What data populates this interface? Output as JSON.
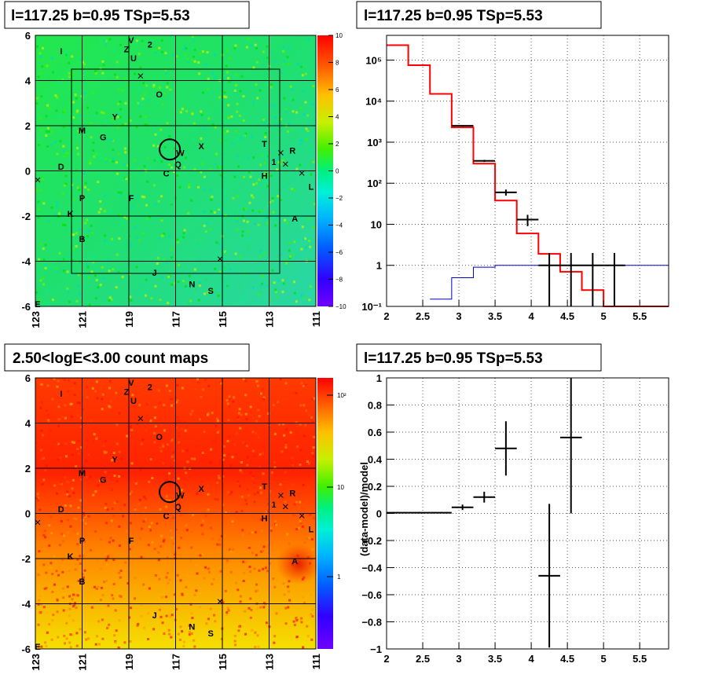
{
  "panels": {
    "tl_title": "l=117.25 b=0.95 TSp=5.53",
    "tr_title": "l=117.25 b=0.95 TSp=5.53",
    "bl_title": "2.50<logE<3.00 count maps",
    "br_title": "l=117.25 b=0.95 TSp=5.53"
  },
  "map": {
    "x_ticks": [
      "123",
      "121",
      "119",
      "117",
      "115",
      "113",
      "111"
    ],
    "y_ticks": [
      "6",
      "4",
      "2",
      "0",
      "-2",
      "-4",
      "-6"
    ],
    "x_range": [
      123,
      111
    ],
    "y_range": [
      -6,
      6
    ],
    "circle_center": [
      117.25,
      0.95
    ],
    "sources": [
      {
        "label": "I",
        "l": 121.9,
        "b": 5.3
      },
      {
        "label": "V",
        "l": 118.9,
        "b": 5.8
      },
      {
        "label": "2",
        "l": 118.1,
        "b": 5.6
      },
      {
        "label": "Z",
        "l": 119.1,
        "b": 5.4
      },
      {
        "label": "U",
        "l": 118.8,
        "b": 5.0
      },
      {
        "label": "O",
        "l": 117.7,
        "b": 3.4
      },
      {
        "label": "Y",
        "l": 119.6,
        "b": 2.4
      },
      {
        "label": "M",
        "l": 121.0,
        "b": 1.8
      },
      {
        "label": "G",
        "l": 120.1,
        "b": 1.5
      },
      {
        "label": "W",
        "l": 116.8,
        "b": 0.8
      },
      {
        "label": "X",
        "l": 115.9,
        "b": 1.1
      },
      {
        "label": "T",
        "l": 113.2,
        "b": 1.2
      },
      {
        "label": "R",
        "l": 112.0,
        "b": 0.9
      },
      {
        "label": "1",
        "l": 112.8,
        "b": 0.4
      },
      {
        "label": "D",
        "l": 121.9,
        "b": 0.2
      },
      {
        "label": "C",
        "l": 117.4,
        "b": -0.1
      },
      {
        "label": "Q",
        "l": 116.9,
        "b": 0.3
      },
      {
        "label": "H",
        "l": 113.2,
        "b": -0.2
      },
      {
        "label": "L",
        "l": 111.2,
        "b": -0.7
      },
      {
        "label": "F",
        "l": 118.9,
        "b": -1.2
      },
      {
        "label": "P",
        "l": 121.0,
        "b": -1.2
      },
      {
        "label": "K",
        "l": 121.5,
        "b": -1.9
      },
      {
        "label": "A",
        "l": 111.9,
        "b": -2.1
      },
      {
        "label": "B",
        "l": 121.0,
        "b": -3.0
      },
      {
        "label": "J",
        "l": 117.9,
        "b": -4.5
      },
      {
        "label": "N",
        "l": 116.3,
        "b": -5.0
      },
      {
        "label": "S",
        "l": 115.5,
        "b": -5.3
      },
      {
        "label": "E",
        "l": 122.9,
        "b": -5.9
      }
    ],
    "crosses": [
      {
        "l": 118.5,
        "b": 4.2
      },
      {
        "l": 122.9,
        "b": -0.4
      },
      {
        "l": 112.5,
        "b": 0.8
      },
      {
        "l": 112.3,
        "b": 0.3
      },
      {
        "l": 111.6,
        "b": -0.1
      },
      {
        "l": 115.1,
        "b": -3.9
      }
    ]
  },
  "zscale_tl": {
    "ticks": [
      "10",
      "8",
      "6",
      "4",
      "2",
      "0",
      "−2",
      "−4",
      "−6",
      "−8",
      "−10"
    ]
  },
  "zscale_bl": {
    "ticks": [
      "10²",
      "10",
      "1"
    ]
  },
  "chart_data": [
    {
      "type": "line",
      "title": "l=117.25 b=0.95 TSp=5.53",
      "xlim": [
        2,
        5.9
      ],
      "ylim": [
        0.1,
        400000
      ],
      "log_y": true,
      "grid": true,
      "x_ticks": [
        "2",
        "2.5",
        "3",
        "3.5",
        "4",
        "4.5",
        "5",
        "5.5"
      ],
      "y_ticks": [
        "10⁻¹",
        "1",
        "10",
        "10²",
        "10³",
        "10⁴",
        "10⁵"
      ],
      "model_total_step": {
        "edges": [
          2.0,
          2.3,
          2.6,
          2.9,
          3.2,
          3.5,
          3.8,
          4.1,
          4.4,
          4.7,
          5.0,
          5.9
        ],
        "values": [
          230000,
          75000,
          15000,
          2300,
          300,
          38,
          6,
          1.9,
          0.7,
          0.25,
          0.1
        ],
        "color": "#ff0000"
      },
      "model_source_step": {
        "edges": [
          2.6,
          2.9,
          3.2,
          3.5,
          3.8,
          4.1,
          5.9
        ],
        "values": [
          0.15,
          0.5,
          0.9,
          1.0,
          1.0,
          1.0
        ],
        "color": "#0000cc"
      },
      "data_points": [
        {
          "x": 3.05,
          "y": 2500,
          "xerr": 0.15,
          "ylo": 2400,
          "yhi": 2600
        },
        {
          "x": 3.35,
          "y": 350,
          "xerr": 0.15,
          "ylo": 330,
          "yhi": 370
        },
        {
          "x": 3.65,
          "y": 60,
          "xerr": 0.15,
          "ylo": 50,
          "yhi": 70
        },
        {
          "x": 3.95,
          "y": 13,
          "xerr": 0.15,
          "ylo": 9,
          "yhi": 17
        },
        {
          "x": 4.25,
          "y": 1,
          "xerr": 0.15,
          "ylo": 0.1,
          "yhi": 2
        },
        {
          "x": 4.55,
          "y": 1,
          "xerr": 0.15,
          "ylo": 0.1,
          "yhi": 2
        },
        {
          "x": 4.85,
          "y": 1,
          "xerr": 0.15,
          "ylo": 0.1,
          "yhi": 2
        },
        {
          "x": 5.15,
          "y": 1,
          "xerr": 0.15,
          "ylo": 0.1,
          "yhi": 2
        }
      ]
    },
    {
      "type": "scatter",
      "title": "l=117.25 b=0.95 TSp=5.53",
      "ylabel": "(data-model)/model",
      "xlim": [
        2,
        5.9
      ],
      "ylim": [
        -1,
        1
      ],
      "grid": true,
      "x_ticks": [
        "2",
        "2.5",
        "3",
        "3.5",
        "4",
        "4.5",
        "5",
        "5.5"
      ],
      "y_ticks": [
        "1",
        "0.8",
        "0.6",
        "0.4",
        "0.2",
        "0",
        "−0.2",
        "−0.4",
        "−0.6",
        "−0.8",
        "−1"
      ],
      "points": [
        {
          "x": 2.15,
          "y": 0.005,
          "xerr": 0.15,
          "yerr": 0.005
        },
        {
          "x": 2.45,
          "y": 0.005,
          "xerr": 0.15,
          "yerr": 0.005
        },
        {
          "x": 2.75,
          "y": 0.005,
          "xerr": 0.15,
          "yerr": 0.005
        },
        {
          "x": 3.05,
          "y": 0.045,
          "xerr": 0.15,
          "yerr": 0.02
        },
        {
          "x": 3.35,
          "y": 0.12,
          "xerr": 0.15,
          "yerr": 0.04
        },
        {
          "x": 3.65,
          "y": 0.48,
          "xerr": 0.15,
          "yerr": 0.2
        },
        {
          "x": 4.25,
          "y": -0.46,
          "xerr": 0.15,
          "yerr": 0.53
        },
        {
          "x": 4.55,
          "y": 0.56,
          "xerr": 0.15,
          "yerr": 0.56
        }
      ]
    }
  ]
}
